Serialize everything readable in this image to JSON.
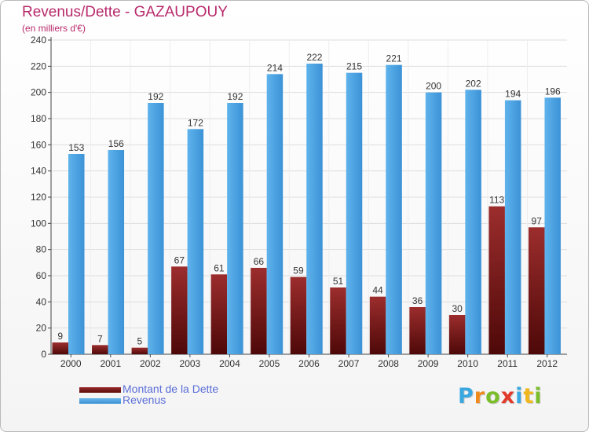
{
  "title": "Revenus/Dette - GAZAUPOUY",
  "subtitle": "(en milliers d'€)",
  "chart_data": {
    "type": "bar",
    "categories": [
      "2000",
      "2001",
      "2002",
      "2003",
      "2004",
      "2005",
      "2006",
      "2007",
      "2008",
      "2009",
      "2010",
      "2011",
      "2012"
    ],
    "series": [
      {
        "name": "Montant de la Dette",
        "values": [
          9,
          7,
          5,
          67,
          61,
          66,
          59,
          51,
          44,
          36,
          30,
          113,
          97
        ],
        "color": "#7a1a1a"
      },
      {
        "name": "Revenus",
        "values": [
          153,
          156,
          192,
          172,
          192,
          214,
          222,
          215,
          221,
          200,
          202,
          194,
          196
        ],
        "color": "#4da3e4"
      }
    ],
    "ylim": [
      0,
      240
    ],
    "yticks": [
      0,
      20,
      40,
      60,
      80,
      100,
      120,
      140,
      160,
      180,
      200,
      220,
      240
    ],
    "grid": true,
    "legend": "bottom-left"
  },
  "legend": {
    "debt_label": "Montant de la Dette",
    "revenue_label": "Revenus"
  },
  "logo": {
    "text": "Proxiti",
    "letter_colors": [
      "#3aa8e0",
      "#f08a1c",
      "#7cbd2a",
      "#e23a2a",
      "#3aa8e0",
      "#f0b81c",
      "#7cbd2a"
    ]
  }
}
